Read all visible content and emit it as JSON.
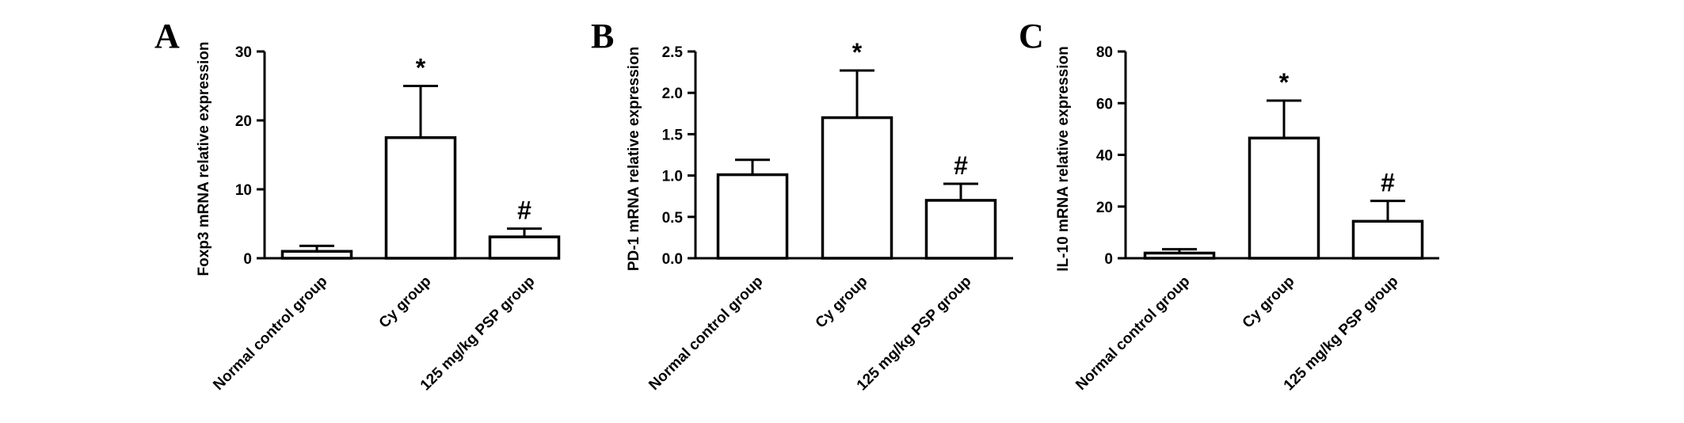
{
  "chart_data": [
    {
      "type": "bar",
      "panel": "A",
      "ylabel": "Foxp3 mRNA relative expression",
      "categories": [
        "Normal control group",
        "Cy group",
        "125 mg/kg PSP group"
      ],
      "values": [
        1.0,
        17.5,
        3.1
      ],
      "errors": [
        0.8,
        7.5,
        1.2
      ],
      "significance": [
        "",
        "*",
        "#"
      ],
      "ylim": [
        0,
        30
      ],
      "yticks": [
        0,
        10,
        20,
        30
      ],
      "ytick_labels": [
        "0",
        "10",
        "20",
        "30"
      ]
    },
    {
      "type": "bar",
      "panel": "B",
      "ylabel": "PD-1 mRNA relative expression",
      "categories": [
        "Normal control group",
        "Cy group",
        "125 mg/kg PSP group"
      ],
      "values": [
        1.01,
        1.7,
        0.7
      ],
      "errors": [
        0.18,
        0.57,
        0.2
      ],
      "significance": [
        "",
        "*",
        "#"
      ],
      "ylim": [
        0,
        2.5
      ],
      "yticks": [
        0,
        0.5,
        1.0,
        1.5,
        2.0,
        2.5
      ],
      "ytick_labels": [
        "0.0",
        "0.5",
        "1.0",
        "1.5",
        "2.0",
        "2.5"
      ]
    },
    {
      "type": "bar",
      "panel": "C",
      "ylabel": "IL-10 mRNA relative expression",
      "categories": [
        "Normal control group",
        "Cy group",
        "125 mg/kg PSP group"
      ],
      "values": [
        2.0,
        46.5,
        14.3
      ],
      "errors": [
        1.5,
        14.5,
        7.9
      ],
      "significance": [
        "",
        "*",
        "#"
      ],
      "ylim": [
        0,
        80
      ],
      "yticks": [
        0,
        20,
        40,
        60,
        80
      ],
      "ytick_labels": [
        "0",
        "20",
        "40",
        "60",
        "80"
      ]
    }
  ]
}
